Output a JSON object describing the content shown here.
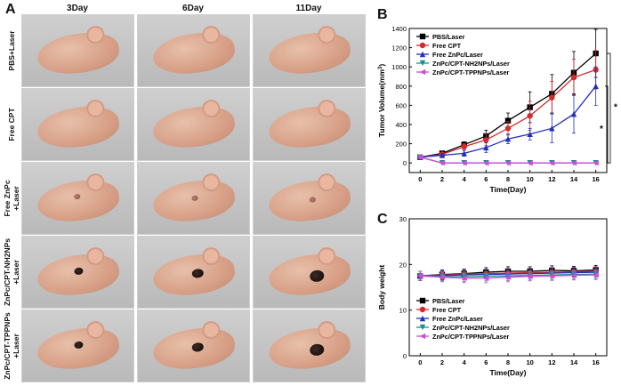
{
  "panel_letters": {
    "a": "A",
    "b": "B",
    "c": "C"
  },
  "photo_grid": {
    "days": [
      "3Day",
      "6Day",
      "11Day"
    ],
    "rows": [
      {
        "label_line1": "PBS+Laser",
        "label_line2": "",
        "tumor": "none"
      },
      {
        "label_line1": "Free CPT",
        "label_line2": "",
        "tumor": "none"
      },
      {
        "label_line1": "Free ZnPc",
        "label_line2": "+Laser",
        "tumor": "small"
      },
      {
        "label_line1": "ZnPc/CPT-NH2NPs",
        "label_line2": "+Laser",
        "tumor": "dark"
      },
      {
        "label_line1": "ZnPc/CPT-TPPNPs",
        "label_line2": "+Laser",
        "tumor": "dark"
      }
    ]
  },
  "colors": {
    "PBS/Laser": "#000000",
    "Free CPT": "#d62a2a",
    "Free ZnPc/Laser": "#1f2fbf",
    "ZnPc/CPT-NH2NPs/Laser": "#1a8f8f",
    "ZnPc/CPT-TPPNPs/Laser": "#d24ad8"
  },
  "chart_data": [
    {
      "id": "B",
      "type": "line",
      "title": "",
      "xlabel": "Time(Day)",
      "ylabel": "Tumor Volume(mm",
      "ylabel_sup": "3",
      "ylabel_close": ")",
      "x": [
        0,
        2,
        4,
        6,
        8,
        10,
        12,
        14,
        16
      ],
      "xlim": [
        -1,
        17
      ],
      "ylim": [
        -100,
        1400
      ],
      "yticks": [
        0,
        200,
        400,
        600,
        800,
        1000,
        1200,
        1400
      ],
      "xticks": [
        0,
        2,
        4,
        6,
        8,
        10,
        12,
        14,
        16
      ],
      "legend_position": "top-left",
      "series": [
        {
          "name": "PBS/Laser",
          "marker": "square",
          "values": [
            60,
            100,
            190,
            280,
            440,
            580,
            720,
            940,
            1140
          ],
          "errors": [
            15,
            20,
            30,
            60,
            80,
            160,
            200,
            220,
            250
          ]
        },
        {
          "name": "Free CPT",
          "marker": "circle",
          "values": [
            60,
            90,
            170,
            240,
            360,
            490,
            680,
            890,
            970
          ],
          "errors": [
            15,
            20,
            30,
            60,
            70,
            150,
            170,
            190,
            200
          ]
        },
        {
          "name": "Free ZnPc/Laser",
          "marker": "triangle-up",
          "values": [
            60,
            80,
            100,
            160,
            250,
            300,
            360,
            510,
            800
          ],
          "errors": [
            15,
            20,
            30,
            50,
            50,
            60,
            150,
            200,
            200
          ]
        },
        {
          "name": "ZnPc/CPT-NH2NPs/Laser",
          "marker": "triangle-down",
          "values": [
            60,
            0,
            0,
            0,
            0,
            0,
            0,
            0,
            0
          ],
          "errors": [
            15,
            5,
            5,
            5,
            5,
            5,
            5,
            5,
            5
          ]
        },
        {
          "name": "ZnPc/CPT-TPPNPs/Laser",
          "marker": "triangle-left",
          "values": [
            60,
            0,
            0,
            0,
            0,
            0,
            0,
            0,
            0
          ],
          "errors": [
            15,
            5,
            5,
            5,
            5,
            5,
            5,
            5,
            5
          ]
        }
      ],
      "annotations": [
        "*",
        "*"
      ]
    },
    {
      "id": "C",
      "type": "line",
      "title": "",
      "xlabel": "Time(Day)",
      "ylabel": "Body weight",
      "x": [
        0,
        2,
        4,
        6,
        8,
        10,
        12,
        14,
        16
      ],
      "xlim": [
        -1,
        17
      ],
      "ylim": [
        0,
        30
      ],
      "yticks": [
        0,
        10,
        20,
        30
      ],
      "xticks": [
        0,
        2,
        4,
        6,
        8,
        10,
        12,
        14,
        16
      ],
      "legend_position": "bottom-left",
      "series": [
        {
          "name": "PBS/Laser",
          "marker": "square",
          "values": [
            17.5,
            17.8,
            18.0,
            18.3,
            18.5,
            18.5,
            18.7,
            18.6,
            18.8
          ],
          "errors": [
            1.0,
            1.0,
            1.0,
            1.0,
            1.0,
            1.0,
            1.0,
            1.0,
            1.0
          ]
        },
        {
          "name": "Free CPT",
          "marker": "circle",
          "values": [
            17.5,
            17.7,
            17.9,
            18.0,
            18.1,
            18.2,
            18.3,
            18.4,
            18.5
          ],
          "errors": [
            1.0,
            1.0,
            1.0,
            1.0,
            1.0,
            1.0,
            1.0,
            1.0,
            1.0
          ]
        },
        {
          "name": "Free ZnPc/Laser",
          "marker": "triangle-up",
          "values": [
            17.5,
            17.6,
            17.7,
            17.8,
            17.9,
            18.0,
            18.1,
            18.2,
            18.3
          ],
          "errors": [
            1.0,
            1.0,
            1.0,
            1.0,
            1.0,
            1.0,
            1.0,
            1.0,
            1.0
          ]
        },
        {
          "name": "ZnPc/CPT-NH2NPs/Laser",
          "marker": "triangle-down",
          "values": [
            17.5,
            17.4,
            17.3,
            17.4,
            17.5,
            17.6,
            17.7,
            17.8,
            17.9
          ],
          "errors": [
            1.0,
            1.0,
            1.0,
            1.0,
            1.0,
            1.0,
            1.0,
            1.0,
            1.0
          ]
        },
        {
          "name": "ZnPc/CPT-TPPNPs/Laser",
          "marker": "triangle-left",
          "values": [
            17.5,
            17.2,
            17.0,
            17.0,
            17.2,
            17.4,
            17.5,
            17.6,
            17.7
          ],
          "errors": [
            1.0,
            1.0,
            1.0,
            1.0,
            1.0,
            1.0,
            1.0,
            1.0,
            1.0
          ]
        }
      ]
    }
  ]
}
